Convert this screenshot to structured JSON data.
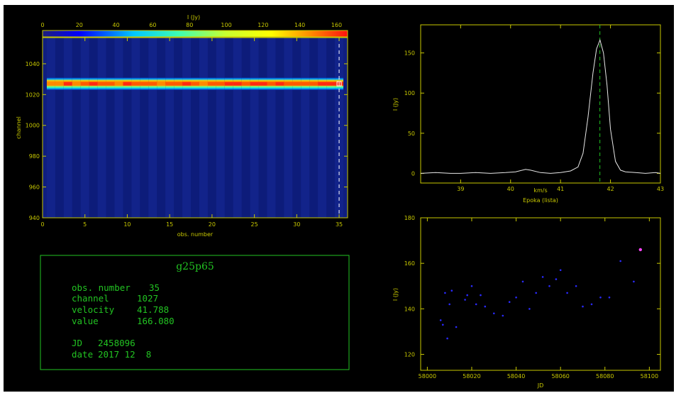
{
  "colorbar": {
    "title": "I (Jy)",
    "ticks": [
      0,
      20,
      40,
      60,
      80,
      100,
      120,
      140,
      160
    ],
    "range": [
      0,
      166
    ]
  },
  "heatmap": {
    "xlabel": "obs. number",
    "ylabel": "channel",
    "xlim": [
      0,
      36
    ],
    "ylim": [
      940,
      1057
    ],
    "xticks": [
      0,
      5,
      10,
      15,
      20,
      25,
      30,
      35
    ],
    "yticks": [
      940,
      960,
      980,
      1000,
      1020,
      1040
    ],
    "n_obs": 35,
    "line_center_channel": 1027,
    "line_width_channels": 4,
    "peak_values": [
      120,
      135,
      160,
      130,
      150,
      155,
      148,
      152,
      130,
      160,
      140,
      140,
      145,
      132,
      140,
      150,
      160,
      152,
      138,
      150,
      145,
      158,
      160,
      150,
      155,
      158,
      152,
      162,
      150,
      145,
      140,
      150,
      165,
      160,
      166
    ],
    "selected_obs": 35,
    "selected_channel": 1027
  },
  "info": {
    "title": "g25p65",
    "rows": [
      {
        "label": "obs. number",
        "value": "35"
      },
      {
        "label": "channel",
        "value": "1027"
      },
      {
        "label": "velocity",
        "value": "41.788"
      },
      {
        "label": "value",
        "value": "166.080"
      }
    ],
    "jd_label": "JD",
    "jd_value": "2458096",
    "date_label": "date",
    "date_value": "2017 12  8"
  },
  "colors": {
    "axis": "#c8c800",
    "info_text": "#22c322",
    "spectrum_line": "#e8e8e8",
    "marker_line": "#22c322",
    "scatter_points": "#2a2aff",
    "highlight_point": "#ff44ff"
  },
  "chart_data": [
    {
      "type": "heatmap",
      "title": "I (Jy)",
      "xlabel": "obs. number",
      "ylabel": "channel",
      "xlim": [
        0,
        36
      ],
      "ylim": [
        940,
        1057
      ]
    },
    {
      "type": "line",
      "title": "",
      "xlabel": "km/s",
      "ylabel": "I (Jy)",
      "subtitle": "Epoka (lista)",
      "xlim": [
        38.2,
        43
      ],
      "ylim": [
        -12,
        185
      ],
      "xticks": [
        39,
        40,
        41,
        42,
        43
      ],
      "yticks": [
        0,
        50,
        100,
        150
      ],
      "x": [
        38.2,
        38.5,
        38.8,
        39.0,
        39.3,
        39.6,
        39.9,
        40.1,
        40.3,
        40.4,
        40.6,
        40.8,
        41.0,
        41.2,
        41.35,
        41.45,
        41.55,
        41.65,
        41.72,
        41.79,
        41.86,
        41.93,
        42.0,
        42.1,
        42.2,
        42.3,
        42.5,
        42.7,
        42.9,
        43.0
      ],
      "y": [
        0,
        1,
        0,
        0,
        1,
        0,
        1,
        2,
        5,
        4,
        1,
        0,
        1,
        3,
        8,
        25,
        70,
        125,
        155,
        166,
        150,
        110,
        55,
        15,
        4,
        2,
        1,
        0,
        1,
        0
      ],
      "marker_x": 41.788
    },
    {
      "type": "scatter",
      "xlabel": "JD",
      "ylabel": "I (Jy)",
      "xlim": [
        57997,
        58105
      ],
      "ylim": [
        113,
        180
      ],
      "xticks": [
        58000,
        58020,
        58040,
        58060,
        58080,
        58100
      ],
      "yticks": [
        120,
        140,
        160,
        180
      ],
      "x": [
        58006,
        58007,
        58008,
        58009,
        58010,
        58011,
        58013,
        58017,
        58018,
        58020,
        58022,
        58024,
        58026,
        58030,
        58034,
        58037,
        58040,
        58043,
        58046,
        58049,
        58052,
        58055,
        58058,
        58060,
        58063,
        58067,
        58070,
        58074,
        58078,
        58082,
        58087,
        58093,
        58096
      ],
      "y": [
        135,
        133,
        147,
        127,
        142,
        148,
        132,
        144,
        146,
        150,
        142,
        146,
        141,
        138,
        137,
        143,
        145,
        152,
        140,
        147,
        154,
        150,
        153,
        157,
        147,
        150,
        141,
        142,
        145,
        145,
        161,
        152,
        166
      ]
    }
  ]
}
